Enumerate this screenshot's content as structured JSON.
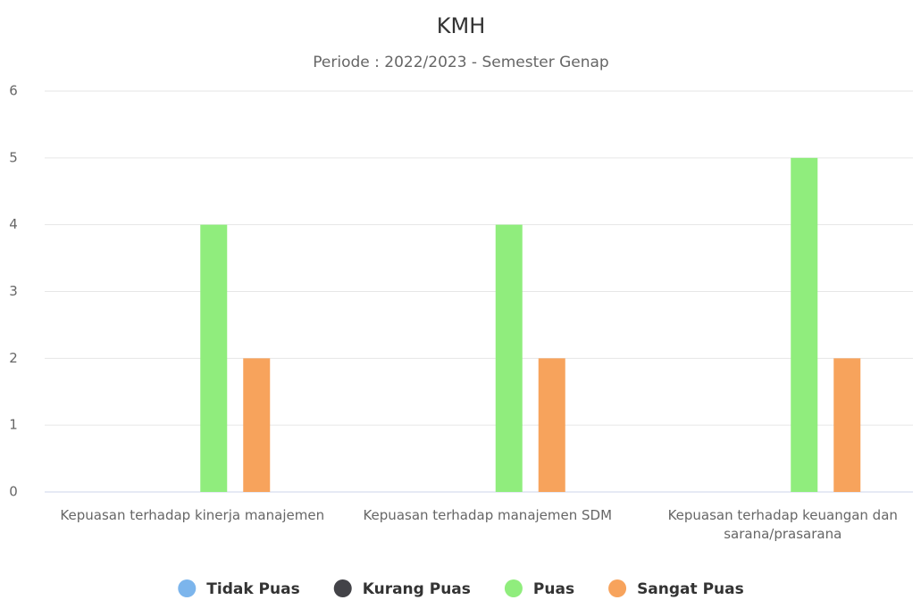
{
  "chart_data": {
    "type": "bar",
    "title": "KMH",
    "subtitle": "Periode : 2022/2023 - Semester Genap",
    "categories": [
      "Kepuasan terhadap kinerja manajemen",
      "Kepuasan terhadap manajemen SDM",
      "Kepuasan terhadap keuangan dan sarana/prasarana"
    ],
    "series": [
      {
        "name": "Tidak Puas",
        "color": "#7cb5ec",
        "values": [
          0,
          0,
          0
        ]
      },
      {
        "name": "Kurang Puas",
        "color": "#434348",
        "values": [
          0,
          0,
          0
        ]
      },
      {
        "name": "Puas",
        "color": "#90ed7d",
        "values": [
          4,
          4,
          5
        ]
      },
      {
        "name": "Sangat Puas",
        "color": "#f7a35c",
        "values": [
          2,
          2,
          2
        ]
      }
    ],
    "ylim": [
      0,
      6
    ],
    "yticks": [
      0,
      1,
      2,
      3,
      4,
      5,
      6
    ],
    "grid": true,
    "legend": "bottom"
  }
}
